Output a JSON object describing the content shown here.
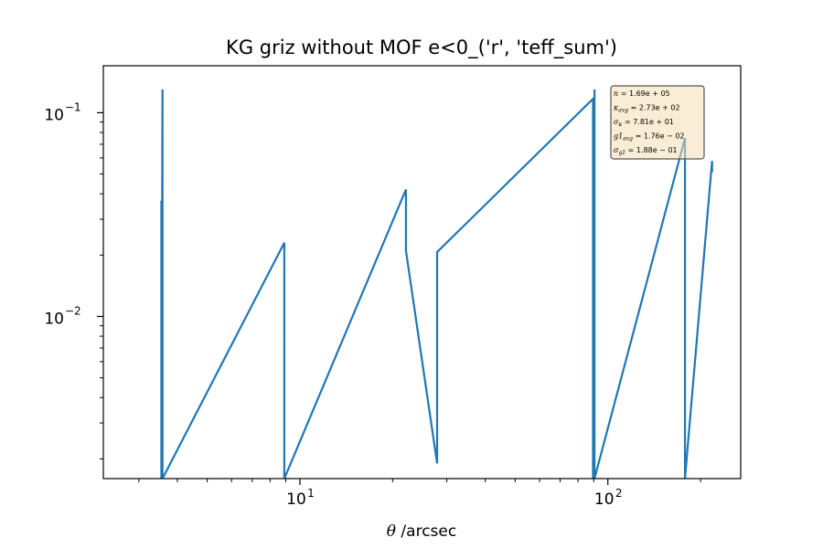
{
  "chart_data": {
    "type": "line",
    "title": "KG griz without MOF e<0_('r', 'teff_sum')",
    "xlabel_symbol": "θ",
    "xlabel": " /arcsec",
    "ylabel": "",
    "xscale": "log",
    "yscale": "log",
    "xlim": [
      2.3,
      270
    ],
    "ylim": [
      0.0016,
      0.17
    ],
    "grid": false,
    "x_ticks": [
      {
        "value": 10,
        "base": "10",
        "exp": "1"
      },
      {
        "value": 100,
        "base": "10",
        "exp": "2"
      }
    ],
    "y_ticks": [
      {
        "value": 0.1,
        "base": "10",
        "exp": "−1"
      },
      {
        "value": 0.01,
        "base": "10",
        "exp": "−2"
      }
    ],
    "series": [
      {
        "color": "#1f77b4",
        "x": [
          3.55,
          3.55,
          3.58,
          3.58,
          8.9,
          8.9,
          22.1,
          22.1,
          27.9,
          27.9,
          89.5,
          89.5,
          90.5,
          90.5,
          178,
          178,
          218,
          218
        ],
        "y": [
          0.037,
          0.0016,
          0.13,
          0.0016,
          0.023,
          0.0016,
          0.042,
          0.021,
          0.0019,
          0.0207,
          0.117,
          0.0016,
          0.13,
          0.0016,
          0.075,
          0.0016,
          0.058,
          0.051
        ]
      }
    ],
    "stats_box": {
      "position": "top-right",
      "lines": [
        {
          "sym": "n",
          "sub": "",
          "rest": " = 1.69e + 05"
        },
        {
          "sym": "κ",
          "sub": "avg",
          "rest": " = 2.73e + 02"
        },
        {
          "sym": "σ",
          "sub": "κ",
          "rest": " = 7.81e + 01"
        },
        {
          "sym": "g1",
          "sub": "avg",
          "rest": " = 1.76e − 02"
        },
        {
          "sym": "σ",
          "sub": "g1",
          "rest": " = 1.88e − 01"
        }
      ]
    }
  }
}
